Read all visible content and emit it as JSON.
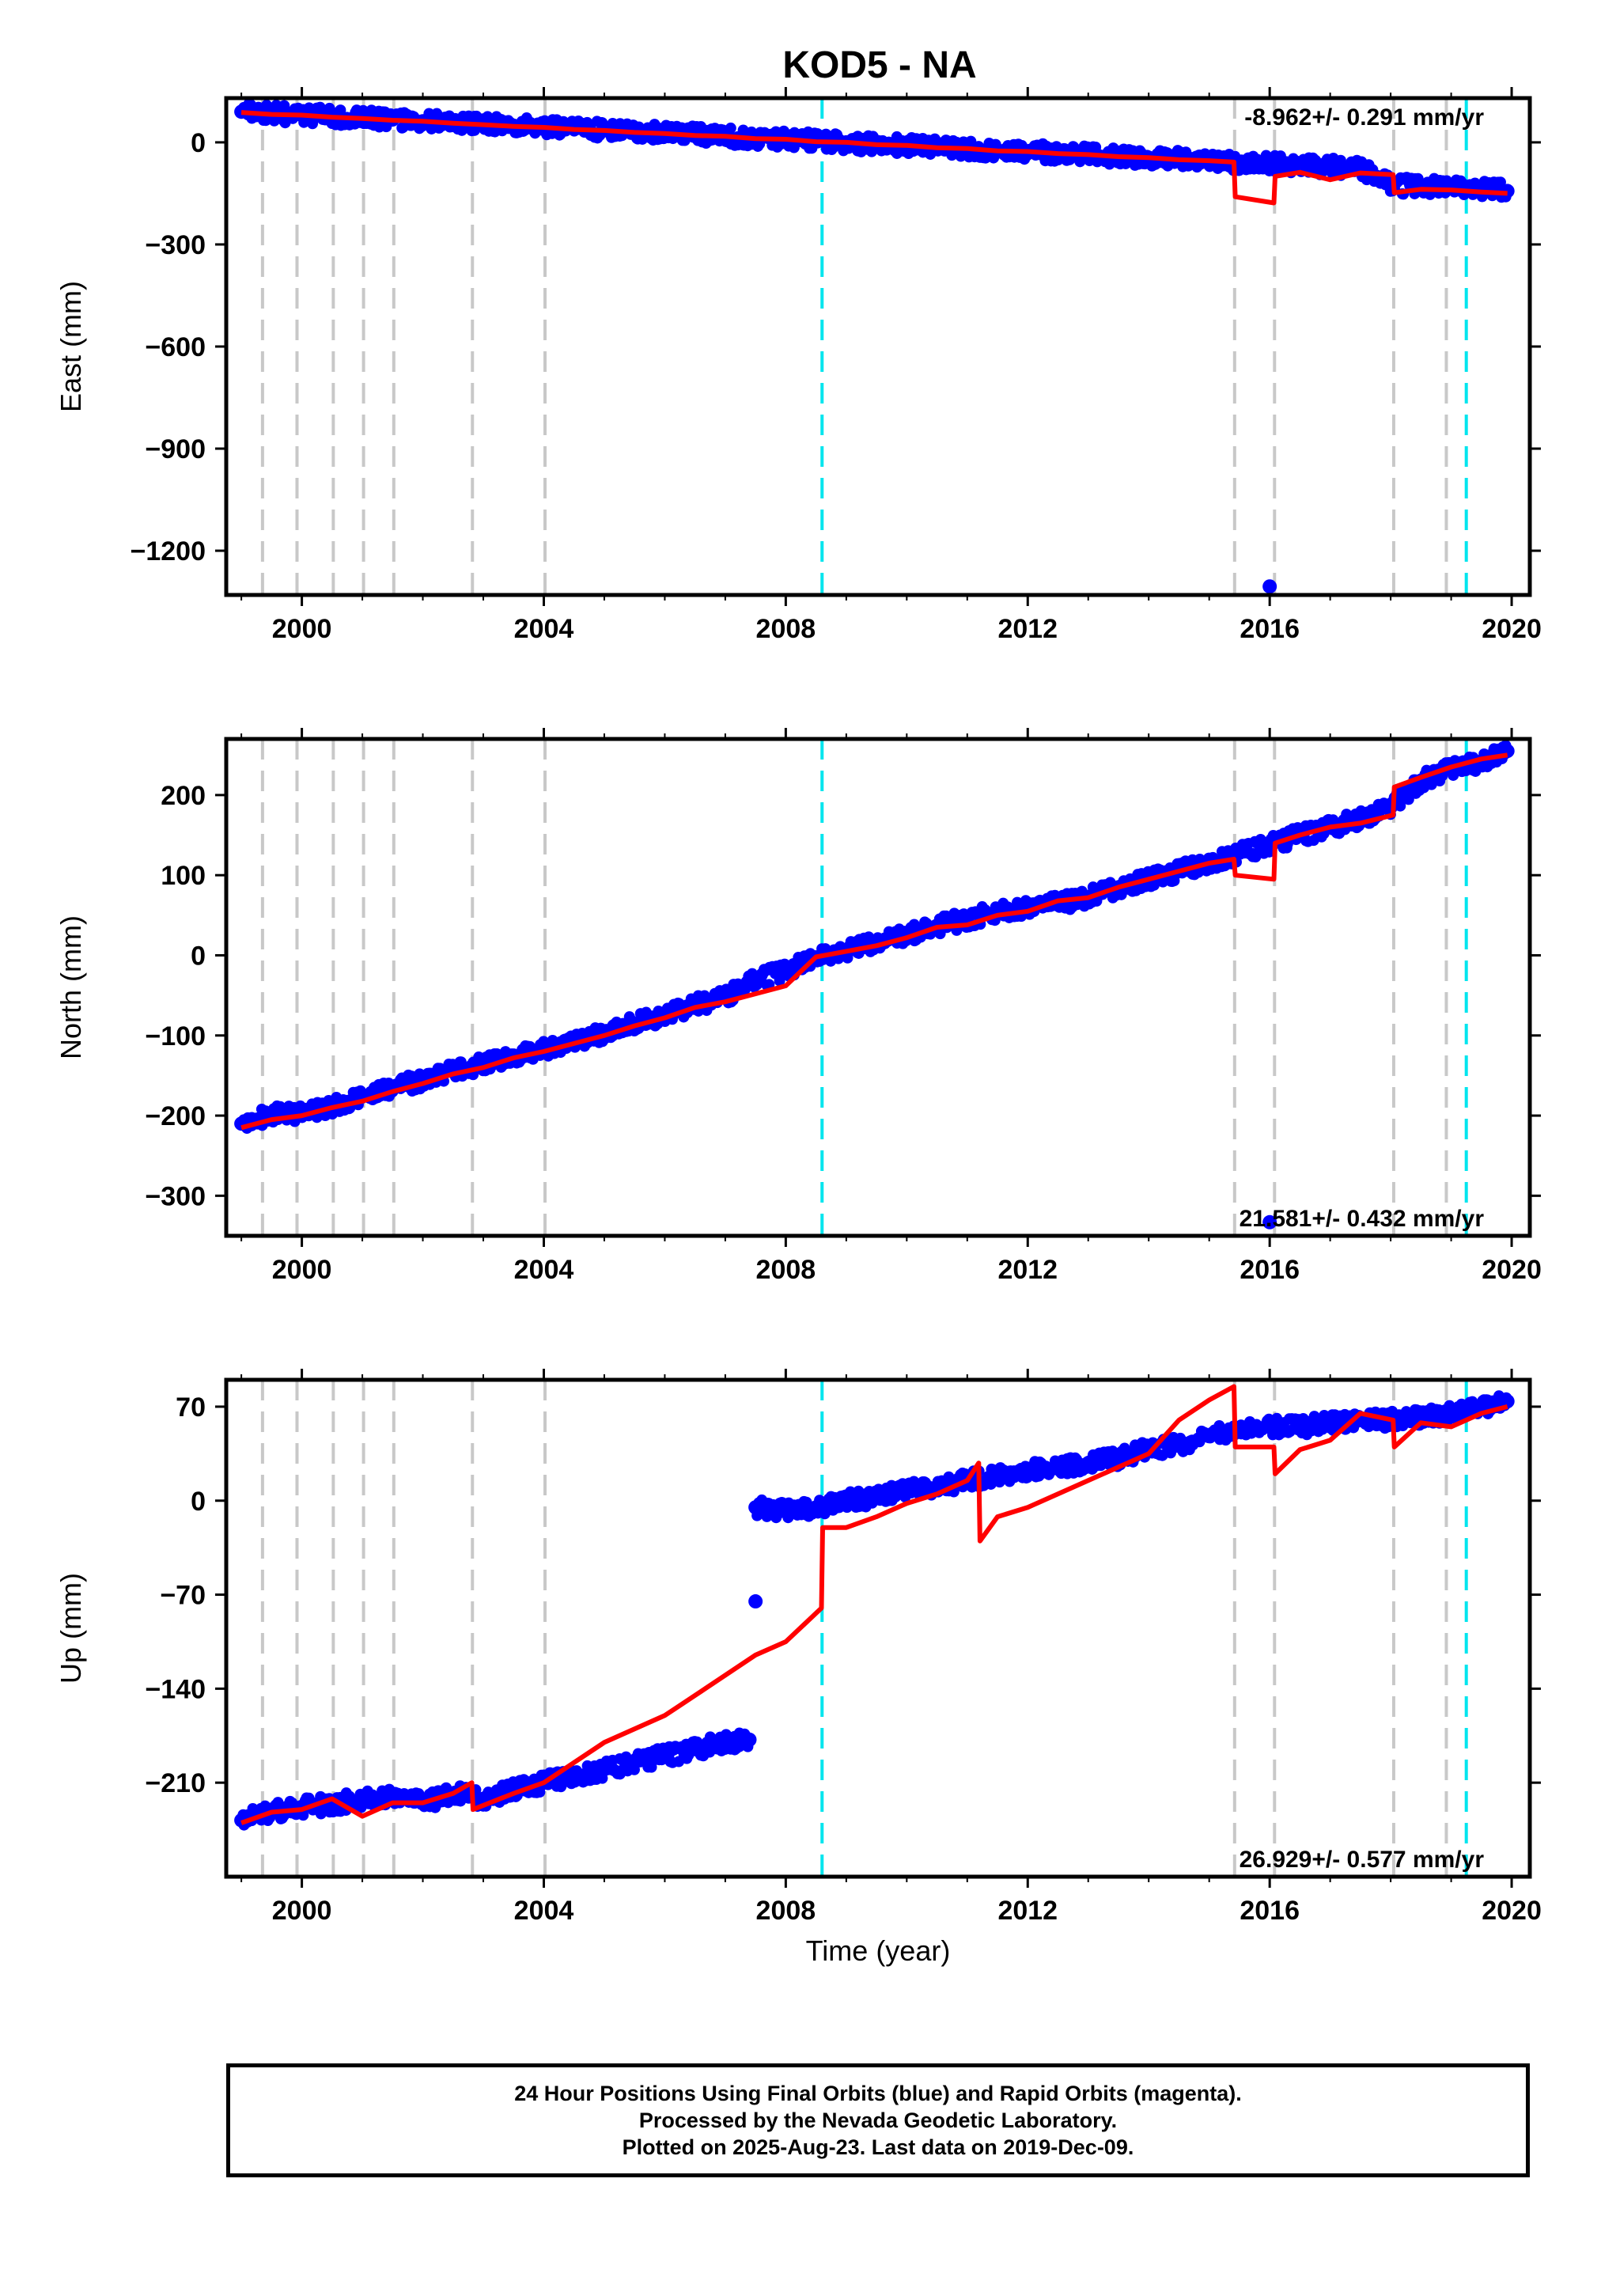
{
  "figure": {
    "title": "KOD5 - NA",
    "xlabel": "Time (year)",
    "footer": [
      "24 Hour Positions Using Final Orbits (blue) and Rapid Orbits (magenta).",
      "Processed by the Nevada Geodetic Laboratory.",
      "Plotted on 2025-Aug-23. Last data on 2019-Dec-09."
    ],
    "colors": {
      "final_orbits": "#0000ff",
      "model": "#ff0000",
      "equipment_change": "#c8c8c8",
      "earthquake": "#00e5ee"
    }
  },
  "chart_data": [
    {
      "type": "scatter",
      "ylabel": "East (mm)",
      "rate_text": "-8.962+/- 0.291 mm/yr",
      "rate_position": "top-right",
      "xlim": [
        1998.75,
        2020.3
      ],
      "ylim": [
        -1330,
        130
      ],
      "xticks": [
        2000,
        2004,
        2008,
        2012,
        2016,
        2020
      ],
      "yticks": [
        0,
        -300,
        -600,
        -900,
        -1200
      ],
      "grid": false,
      "equipment_change_lines": [
        1999.35,
        1999.92,
        2000.52,
        2001.02,
        2001.52,
        2002.82,
        2004.02,
        2015.42,
        2016.08,
        2018.05,
        2018.92
      ],
      "earthquake_lines": [
        2008.6,
        2019.25
      ],
      "series": [
        {
          "name": "Final Orbits",
          "kind": "points",
          "x": [
            1999.0,
            1999.5,
            2000.0,
            2000.5,
            2001.0,
            2001.5,
            2002.0,
            2002.5,
            2003.0,
            2003.5,
            2004.0,
            2004.5,
            2005.0,
            2005.5,
            2006.0,
            2006.5,
            2007.0,
            2007.5,
            2008.0,
            2008.5,
            2009.0,
            2009.5,
            2010.0,
            2010.5,
            2011.0,
            2011.5,
            2012.0,
            2012.5,
            2013.0,
            2013.5,
            2014.0,
            2014.5,
            2015.0,
            2015.5,
            2016.0,
            2016.5,
            2017.0,
            2017.5,
            2018.0,
            2018.5,
            2019.0,
            2019.5,
            2019.93
          ],
          "y": [
            90,
            85,
            80,
            76,
            72,
            67,
            62,
            58,
            53,
            49,
            44,
            40,
            35,
            31,
            26,
            22,
            18,
            13,
            9,
            4,
            0,
            -5,
            -9,
            -14,
            -18,
            -23,
            -27,
            -31,
            -36,
            -40,
            -45,
            -49,
            -54,
            -58,
            -63,
            -67,
            -72,
            -76,
            -125,
            -130,
            -134,
            -139,
            -143
          ]
        },
        {
          "name": "Outlier",
          "kind": "points",
          "x": [
            2016.0
          ],
          "y": [
            -1305
          ]
        },
        {
          "name": "Model",
          "kind": "line",
          "x": [
            1999.0,
            1999.5,
            2000.0,
            2000.5,
            2001.0,
            2001.5,
            2002.0,
            2002.5,
            2003.0,
            2003.5,
            2004.0,
            2004.5,
            2005.0,
            2005.5,
            2006.0,
            2006.5,
            2007.0,
            2007.5,
            2008.0,
            2008.5,
            2009.0,
            2009.5,
            2010.0,
            2010.5,
            2011.0,
            2011.5,
            2012.0,
            2012.5,
            2013.0,
            2013.5,
            2014.0,
            2014.5,
            2015.0,
            2015.41,
            2015.43,
            2016.07,
            2016.09,
            2016.5,
            2017.0,
            2017.5,
            2018.04,
            2018.06,
            2018.5,
            2019.0,
            2019.5,
            2019.93
          ],
          "y": [
            88,
            82,
            80,
            74,
            70,
            65,
            62,
            56,
            52,
            47,
            44,
            38,
            35,
            29,
            26,
            20,
            18,
            11,
            9,
            2,
            0,
            -7,
            -9,
            -16,
            -18,
            -25,
            -27,
            -33,
            -36,
            -42,
            -45,
            -51,
            -54,
            -58,
            -160,
            -178,
            -100,
            -88,
            -110,
            -90,
            -95,
            -148,
            -138,
            -140,
            -146,
            -150
          ]
        }
      ]
    },
    {
      "type": "scatter",
      "ylabel": "North (mm)",
      "rate_text": "21.581+/- 0.432 mm/yr",
      "rate_position": "bottom-right",
      "xlim": [
        1998.75,
        2020.3
      ],
      "ylim": [
        -350,
        270
      ],
      "xticks": [
        2000,
        2004,
        2008,
        2012,
        2016,
        2020
      ],
      "yticks": [
        200,
        100,
        0,
        -100,
        -200,
        -300
      ],
      "grid": false,
      "equipment_change_lines": [
        1999.35,
        1999.92,
        2000.52,
        2001.02,
        2001.52,
        2002.82,
        2004.02,
        2015.42,
        2016.08,
        2018.05,
        2018.92
      ],
      "earthquake_lines": [
        2008.6,
        2019.25
      ],
      "series": [
        {
          "name": "Final Orbits",
          "kind": "points",
          "x": [
            1999.0,
            1999.5,
            2000.0,
            2000.5,
            2001.0,
            2001.5,
            2002.0,
            2002.5,
            2003.0,
            2003.5,
            2004.0,
            2004.5,
            2005.0,
            2005.5,
            2006.0,
            2006.5,
            2007.0,
            2007.5,
            2008.0,
            2008.5,
            2009.0,
            2009.5,
            2010.0,
            2010.5,
            2011.0,
            2011.5,
            2012.0,
            2012.5,
            2013.0,
            2013.5,
            2014.0,
            2014.5,
            2015.0,
            2015.5,
            2016.0,
            2016.5,
            2017.0,
            2017.5,
            2018.0,
            2018.5,
            2019.0,
            2019.5,
            2019.93
          ],
          "y": [
            -210,
            -198,
            -198,
            -188,
            -175,
            -165,
            -155,
            -145,
            -135,
            -125,
            -118,
            -108,
            -96,
            -85,
            -75,
            -62,
            -52,
            -30,
            -20,
            -4,
            5,
            15,
            25,
            37,
            45,
            55,
            60,
            65,
            72,
            85,
            95,
            105,
            115,
            128,
            138,
            150,
            160,
            170,
            185,
            218,
            232,
            242,
            255
          ]
        },
        {
          "name": "Outlier",
          "kind": "points",
          "x": [
            2016.0
          ],
          "y": [
            -333
          ]
        },
        {
          "name": "Model",
          "kind": "line",
          "x": [
            1999.0,
            1999.5,
            2000.0,
            2000.5,
            2001.0,
            2001.5,
            2002.0,
            2002.5,
            2003.0,
            2003.5,
            2004.0,
            2004.5,
            2005.0,
            2005.5,
            2006.0,
            2006.5,
            2007.0,
            2007.5,
            2008.0,
            2008.5,
            2009.0,
            2009.5,
            2010.0,
            2010.5,
            2011.0,
            2011.5,
            2012.0,
            2012.5,
            2013.0,
            2013.5,
            2014.0,
            2014.5,
            2015.0,
            2015.41,
            2015.43,
            2016.07,
            2016.09,
            2016.5,
            2017.0,
            2017.5,
            2018.04,
            2018.06,
            2018.5,
            2019.0,
            2019.5,
            2019.93
          ],
          "y": [
            -215,
            -205,
            -200,
            -190,
            -182,
            -170,
            -160,
            -148,
            -140,
            -128,
            -120,
            -110,
            -100,
            -88,
            -78,
            -65,
            -58,
            -48,
            -38,
            -2,
            5,
            12,
            22,
            35,
            38,
            50,
            55,
            68,
            72,
            85,
            95,
            105,
            115,
            120,
            100,
            95,
            140,
            150,
            160,
            165,
            175,
            210,
            222,
            235,
            245,
            250
          ]
        }
      ]
    },
    {
      "type": "scatter",
      "ylabel": "Up (mm)",
      "rate_text": "26.929+/- 0.577 mm/yr",
      "rate_position": "bottom-right",
      "xlim": [
        1998.75,
        2020.3
      ],
      "ylim": [
        -280,
        90
      ],
      "xticks": [
        2000,
        2004,
        2008,
        2012,
        2016,
        2020
      ],
      "yticks": [
        70,
        0,
        -70,
        -140,
        -210
      ],
      "grid": false,
      "equipment_change_lines": [
        1999.35,
        1999.92,
        2000.52,
        2001.02,
        2001.52,
        2002.82,
        2004.02,
        2015.42,
        2016.08,
        2018.05,
        2018.92
      ],
      "earthquake_lines": [
        2008.6,
        2019.25
      ],
      "series": [
        {
          "name": "Final Orbits",
          "kind": "points",
          "x": [
            1999.0,
            1999.5,
            2000.0,
            2000.5,
            2001.0,
            2001.5,
            2002.0,
            2002.5,
            2003.0,
            2003.5,
            2004.0,
            2004.5,
            2005.0,
            2005.5,
            2006.0,
            2006.5,
            2007.0,
            2007.4,
            2007.5,
            2008.0,
            2008.5,
            2009.0,
            2009.5,
            2010.0,
            2010.5,
            2011.0,
            2011.5,
            2012.0,
            2012.5,
            2013.0,
            2013.5,
            2014.0,
            2014.5,
            2015.0,
            2015.5,
            2016.0,
            2016.5,
            2017.0,
            2017.5,
            2018.0,
            2018.5,
            2019.0,
            2019.5,
            2019.93
          ],
          "y": [
            -238,
            -232,
            -228,
            -226,
            -222,
            -220,
            -225,
            -218,
            -222,
            -215,
            -210,
            -205,
            -200,
            -195,
            -190,
            -185,
            -180,
            -178,
            -5,
            -8,
            -5,
            0,
            3,
            8,
            10,
            15,
            18,
            22,
            25,
            28,
            32,
            38,
            42,
            48,
            52,
            55,
            55,
            58,
            60,
            60,
            62,
            65,
            70,
            74
          ]
        },
        {
          "name": "Outlier",
          "kind": "points",
          "x": [
            2007.5
          ],
          "y": [
            -75
          ]
        },
        {
          "name": "Model",
          "kind": "line",
          "x": [
            1999.0,
            1999.5,
            2000.0,
            2000.5,
            2001.0,
            2001.5,
            2002.0,
            2002.5,
            2002.81,
            2002.83,
            2003.5,
            2004.0,
            2004.5,
            2005.0,
            2005.5,
            2006.0,
            2006.5,
            2007.0,
            2007.5,
            2008.0,
            2008.59,
            2008.61,
            2009.0,
            2009.5,
            2010.0,
            2010.5,
            2011.0,
            2011.19,
            2011.21,
            2011.5,
            2012.0,
            2012.5,
            2013.0,
            2013.5,
            2014.0,
            2014.5,
            2015.0,
            2015.41,
            2015.43,
            2016.07,
            2016.09,
            2016.5,
            2017.0,
            2017.5,
            2018.04,
            2018.06,
            2018.5,
            2019.0,
            2019.5,
            2019.93
          ],
          "y": [
            -240,
            -232,
            -230,
            -222,
            -235,
            -225,
            -225,
            -218,
            -210,
            -230,
            -218,
            -210,
            -195,
            -180,
            -170,
            -160,
            -145,
            -130,
            -115,
            -105,
            -80,
            -20,
            -20,
            -12,
            -2,
            5,
            15,
            28,
            -30,
            -12,
            -5,
            5,
            15,
            25,
            35,
            60,
            75,
            85,
            40,
            40,
            20,
            38,
            45,
            65,
            60,
            40,
            58,
            55,
            65,
            70
          ]
        }
      ]
    }
  ]
}
